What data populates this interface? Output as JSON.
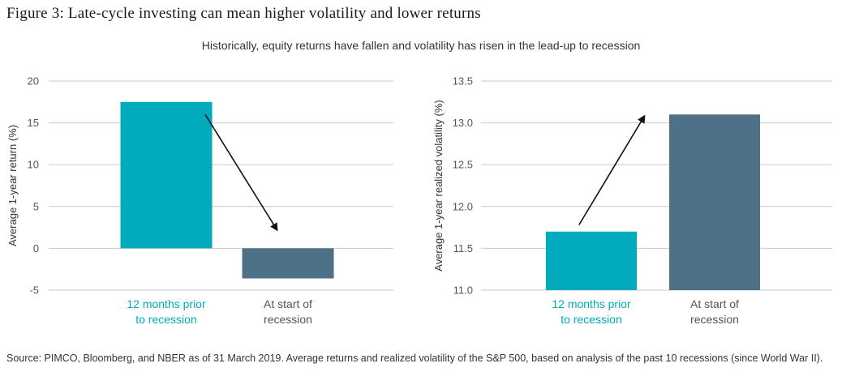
{
  "figure_title": "Figure 3: Late-cycle investing can mean higher volatility and lower returns",
  "subtitle": "Historically, equity returns have fallen and volatility has risen in the lead-up to recession",
  "source": "Source: PIMCO, Bloomberg, and NBER as of 31 March 2019. Average returns and realized volatility of the S&P 500, based on analysis of the past 10 recessions (since World War II).",
  "colors": {
    "teal": "#00abbd",
    "slate": "#4e7188",
    "grid": "#c8c8c8",
    "arrow": "#111111"
  },
  "chart_data": [
    {
      "type": "bar",
      "categories": [
        [
          "12 months prior",
          "to recession"
        ],
        [
          "At start of",
          "recession"
        ]
      ],
      "values": [
        17.5,
        -3.6
      ],
      "ylabel": "Average 1-year return (%)",
      "ylim": [
        -5,
        20
      ],
      "yticks": [
        -5,
        0,
        5,
        10,
        15,
        20
      ],
      "ytick_labels": [
        "-5",
        "0",
        "5",
        "10",
        "15",
        "20"
      ],
      "bar_colors": [
        "#00abbd",
        "#4e7188"
      ],
      "label_colors": [
        "#00abbd",
        "#555555"
      ],
      "grid": true,
      "annotation": {
        "type": "arrow",
        "from": [
          0.32,
          16.0
        ],
        "to": [
          0.91,
          2.2
        ]
      }
    },
    {
      "type": "bar",
      "categories": [
        [
          "12 months prior",
          "to recession"
        ],
        [
          "At start of",
          "recession"
        ]
      ],
      "values": [
        11.7,
        13.1
      ],
      "ylabel": "Average 1-year realized volatility (%)",
      "ylim": [
        11.0,
        13.5
      ],
      "yticks": [
        11.0,
        11.5,
        12.0,
        12.5,
        13.0,
        13.5
      ],
      "ytick_labels": [
        "11.0",
        "11.5",
        "12.0",
        "12.5",
        "13.0",
        "13.5"
      ],
      "bar_colors": [
        "#00abbd",
        "#4e7188"
      ],
      "label_colors": [
        "#00abbd",
        "#555555"
      ],
      "grid": true,
      "annotation": {
        "type": "arrow",
        "from": [
          -0.1,
          11.78
        ],
        "to": [
          0.43,
          13.08
        ]
      }
    }
  ]
}
